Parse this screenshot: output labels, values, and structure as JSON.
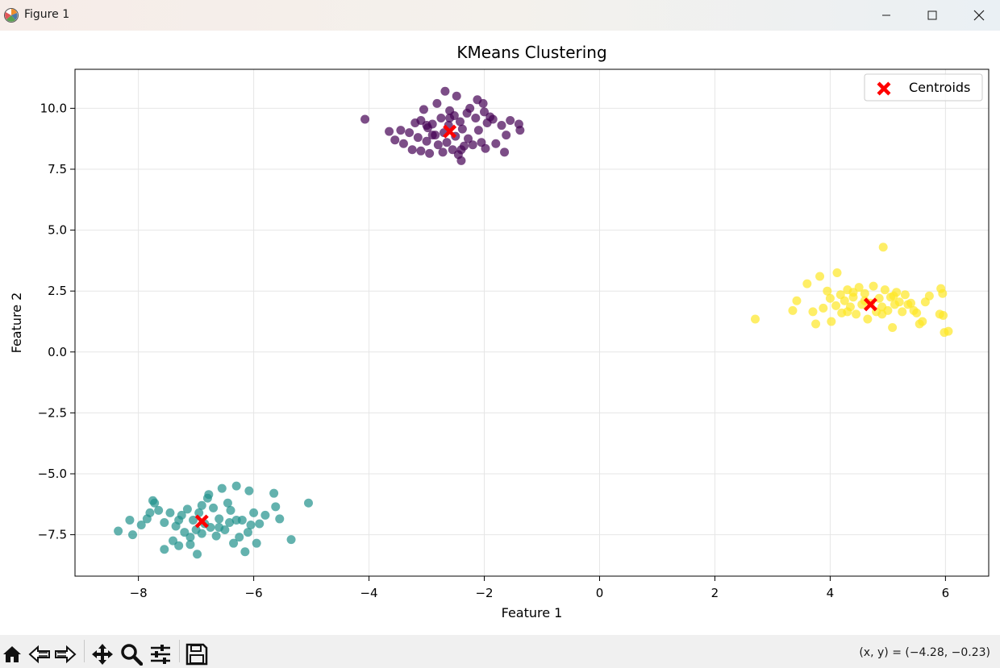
{
  "window": {
    "title": "Figure 1",
    "icons": [
      "matplotlib-icon",
      "minimize-icon",
      "maximize-icon",
      "close-icon"
    ]
  },
  "toolbar": {
    "buttons": [
      "home-icon",
      "back-icon",
      "forward-icon",
      "pan-icon",
      "zoom-icon",
      "configure-subplots-icon",
      "save-icon"
    ],
    "coords_text": "(x, y) = (−4.28, −0.23)"
  },
  "chart_data": {
    "type": "scatter",
    "title": "KMeans Clustering",
    "xlabel": "Feature 1",
    "ylabel": "Feature 2",
    "xlim": [
      -9.1,
      6.75
    ],
    "ylim": [
      -9.2,
      11.6
    ],
    "xticks": [
      -8,
      -6,
      -4,
      -2,
      0,
      2,
      4,
      6
    ],
    "xtick_labels": [
      "−8",
      "−6",
      "−4",
      "−2",
      "0",
      "2",
      "4",
      "6"
    ],
    "yticks": [
      -7.5,
      -5.0,
      -2.5,
      0.0,
      2.5,
      5.0,
      7.5,
      10.0
    ],
    "ytick_labels": [
      "−7.5",
      "−5.0",
      "−2.5",
      "0.0",
      "2.5",
      "5.0",
      "7.5",
      "10.0"
    ],
    "grid": true,
    "legend": {
      "position": "top-right",
      "entries": [
        "Centroids"
      ]
    },
    "colors": {
      "cluster_0": "#440154",
      "cluster_1": "#21918c",
      "cluster_2": "#fde725",
      "centroid": "#ff0000"
    },
    "series": [
      {
        "cluster": 0,
        "points": [
          [
            -4.07,
            9.55
          ],
          [
            -3.65,
            9.05
          ],
          [
            -3.55,
            8.7
          ],
          [
            -3.45,
            9.1
          ],
          [
            -3.4,
            8.55
          ],
          [
            -3.3,
            9.0
          ],
          [
            -3.25,
            8.3
          ],
          [
            -3.2,
            9.4
          ],
          [
            -3.15,
            8.8
          ],
          [
            -3.1,
            9.5
          ],
          [
            -3.1,
            8.25
          ],
          [
            -3.05,
            9.95
          ],
          [
            -3.0,
            8.65
          ],
          [
            -2.98,
            9.2
          ],
          [
            -2.95,
            8.15
          ],
          [
            -2.9,
            9.35
          ],
          [
            -2.85,
            8.9
          ],
          [
            -2.82,
            10.2
          ],
          [
            -2.8,
            8.5
          ],
          [
            -2.75,
            9.6
          ],
          [
            -2.72,
            8.2
          ],
          [
            -2.7,
            9.0
          ],
          [
            -2.68,
            10.7
          ],
          [
            -2.65,
            8.6
          ],
          [
            -2.62,
            9.3
          ],
          [
            -2.6,
            9.9
          ],
          [
            -2.55,
            8.3
          ],
          [
            -2.52,
            9.7
          ],
          [
            -2.5,
            8.85
          ],
          [
            -2.48,
            10.5
          ],
          [
            -2.45,
            8.1
          ],
          [
            -2.42,
            9.45
          ],
          [
            -2.4,
            7.85
          ],
          [
            -2.38,
            9.15
          ],
          [
            -2.35,
            8.45
          ],
          [
            -2.3,
            9.8
          ],
          [
            -2.28,
            8.75
          ],
          [
            -2.25,
            10.0
          ],
          [
            -2.2,
            8.5
          ],
          [
            -2.15,
            9.6
          ],
          [
            -2.12,
            10.35
          ],
          [
            -2.1,
            9.1
          ],
          [
            -2.05,
            8.6
          ],
          [
            -2.02,
            10.2
          ],
          [
            -2.0,
            9.85
          ],
          [
            -1.98,
            8.35
          ],
          [
            -1.95,
            9.4
          ],
          [
            -1.9,
            9.65
          ],
          [
            -1.85,
            9.55
          ],
          [
            -1.8,
            8.55
          ],
          [
            -1.7,
            9.3
          ],
          [
            -1.65,
            8.2
          ],
          [
            -1.62,
            8.9
          ],
          [
            -1.55,
            9.5
          ],
          [
            -1.4,
            9.35
          ],
          [
            -1.38,
            9.1
          ],
          [
            -2.9,
            8.9
          ],
          [
            -2.6,
            9.6
          ],
          [
            -2.4,
            8.3
          ],
          [
            -3.0,
            9.3
          ]
        ]
      },
      {
        "cluster": 1,
        "points": [
          [
            -8.35,
            -7.35
          ],
          [
            -8.15,
            -6.9
          ],
          [
            -8.1,
            -7.5
          ],
          [
            -7.95,
            -7.1
          ],
          [
            -7.85,
            -6.85
          ],
          [
            -7.8,
            -6.6
          ],
          [
            -7.75,
            -6.1
          ],
          [
            -7.72,
            -6.2
          ],
          [
            -7.65,
            -6.5
          ],
          [
            -7.55,
            -7.0
          ],
          [
            -7.55,
            -8.1
          ],
          [
            -7.45,
            -6.6
          ],
          [
            -7.4,
            -7.75
          ],
          [
            -7.35,
            -7.15
          ],
          [
            -7.3,
            -7.95
          ],
          [
            -7.25,
            -6.7
          ],
          [
            -7.2,
            -7.4
          ],
          [
            -7.15,
            -6.45
          ],
          [
            -7.1,
            -7.6
          ],
          [
            -7.05,
            -6.9
          ],
          [
            -7.0,
            -7.3
          ],
          [
            -6.98,
            -8.3
          ],
          [
            -6.95,
            -6.6
          ],
          [
            -6.9,
            -7.45
          ],
          [
            -6.85,
            -7.05
          ],
          [
            -6.8,
            -6.0
          ],
          [
            -6.78,
            -5.85
          ],
          [
            -6.75,
            -7.2
          ],
          [
            -6.7,
            -6.4
          ],
          [
            -6.65,
            -7.55
          ],
          [
            -6.6,
            -6.85
          ],
          [
            -6.55,
            -5.6
          ],
          [
            -6.5,
            -7.3
          ],
          [
            -6.45,
            -6.2
          ],
          [
            -6.42,
            -7.0
          ],
          [
            -6.4,
            -6.5
          ],
          [
            -6.35,
            -7.85
          ],
          [
            -6.3,
            -5.5
          ],
          [
            -6.25,
            -7.6
          ],
          [
            -6.2,
            -6.9
          ],
          [
            -6.15,
            -8.2
          ],
          [
            -6.1,
            -7.4
          ],
          [
            -6.08,
            -5.7
          ],
          [
            -6.05,
            -7.1
          ],
          [
            -6.0,
            -6.6
          ],
          [
            -5.95,
            -7.85
          ],
          [
            -5.9,
            -7.05
          ],
          [
            -5.8,
            -6.7
          ],
          [
            -5.65,
            -5.8
          ],
          [
            -5.62,
            -6.35
          ],
          [
            -5.55,
            -6.85
          ],
          [
            -5.35,
            -7.7
          ],
          [
            -5.05,
            -6.2
          ],
          [
            -7.1,
            -7.9
          ],
          [
            -6.6,
            -7.2
          ],
          [
            -6.3,
            -6.9
          ],
          [
            -6.9,
            -6.3
          ],
          [
            -7.3,
            -6.9
          ]
        ]
      },
      {
        "cluster": 2,
        "points": [
          [
            2.7,
            1.35
          ],
          [
            3.35,
            1.7
          ],
          [
            3.42,
            2.1
          ],
          [
            3.6,
            2.8
          ],
          [
            3.7,
            1.65
          ],
          [
            3.75,
            1.15
          ],
          [
            3.82,
            3.1
          ],
          [
            3.88,
            1.8
          ],
          [
            3.95,
            2.5
          ],
          [
            4.0,
            2.2
          ],
          [
            4.02,
            1.25
          ],
          [
            4.1,
            1.9
          ],
          [
            4.12,
            3.25
          ],
          [
            4.18,
            2.35
          ],
          [
            4.2,
            1.6
          ],
          [
            4.25,
            2.1
          ],
          [
            4.3,
            2.55
          ],
          [
            4.35,
            1.85
          ],
          [
            4.4,
            2.25
          ],
          [
            4.45,
            1.55
          ],
          [
            4.5,
            2.65
          ],
          [
            4.55,
            1.95
          ],
          [
            4.6,
            2.4
          ],
          [
            4.65,
            1.35
          ],
          [
            4.7,
            2.0
          ],
          [
            4.75,
            2.7
          ],
          [
            4.8,
            1.65
          ],
          [
            4.85,
            2.2
          ],
          [
            4.9,
            1.85
          ],
          [
            4.92,
            4.3
          ],
          [
            4.95,
            2.55
          ],
          [
            5.0,
            1.7
          ],
          [
            5.05,
            2.25
          ],
          [
            5.08,
            1.0
          ],
          [
            5.12,
            1.95
          ],
          [
            5.15,
            2.45
          ],
          [
            5.2,
            2.05
          ],
          [
            5.25,
            1.65
          ],
          [
            5.3,
            2.35
          ],
          [
            5.35,
            1.95
          ],
          [
            5.4,
            2.0
          ],
          [
            5.45,
            1.7
          ],
          [
            5.5,
            1.6
          ],
          [
            5.55,
            1.15
          ],
          [
            5.6,
            1.25
          ],
          [
            5.65,
            2.05
          ],
          [
            5.72,
            2.3
          ],
          [
            5.9,
            1.55
          ],
          [
            5.92,
            2.6
          ],
          [
            5.95,
            2.4
          ],
          [
            5.96,
            1.5
          ],
          [
            5.98,
            0.8
          ],
          [
            6.05,
            0.85
          ],
          [
            4.3,
            1.65
          ],
          [
            4.6,
            2.1
          ],
          [
            5.1,
            2.3
          ],
          [
            4.9,
            1.55
          ],
          [
            4.4,
            2.45
          ]
        ]
      }
    ],
    "centroids": {
      "name": "Centroids",
      "points": [
        [
          -2.6,
          9.05
        ],
        [
          -6.9,
          -6.95
        ],
        [
          4.7,
          1.95
        ]
      ]
    }
  }
}
